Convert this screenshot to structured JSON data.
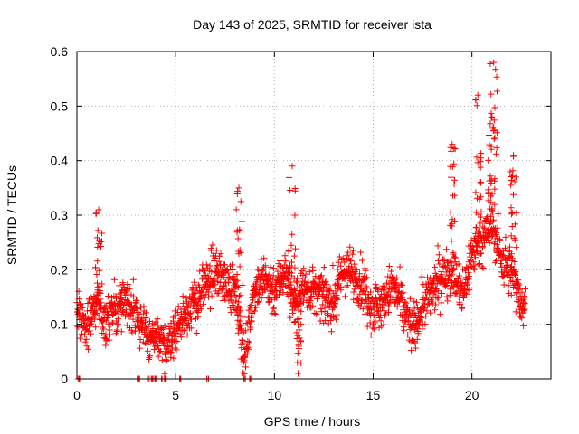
{
  "chart_data": {
    "type": "scatter",
    "title": "Day 143 of 2025, SRMTID for receiver ista",
    "xlabel": "GPS time / hours",
    "ylabel": "SRMTID / TECUs",
    "xlim": [
      0,
      24
    ],
    "ylim": [
      0,
      0.6
    ],
    "xticks": [
      0,
      5,
      10,
      15,
      20
    ],
    "yticks": [
      0,
      0.1,
      0.2,
      0.3,
      0.4,
      0.5,
      0.6
    ],
    "xtick_labels": [
      "0",
      "5",
      "10",
      "15",
      "20"
    ],
    "ytick_labels": [
      "0",
      "0.1",
      "0.2",
      "0.3",
      "0.4",
      "0.5",
      "0.6"
    ],
    "grid": true,
    "marker": "+",
    "color": "#ff0000",
    "series": [
      {
        "name": "SRMTID",
        "trend": {
          "x": [
            0.0,
            0.5,
            1.0,
            1.5,
            2.0,
            2.5,
            3.0,
            3.5,
            4.0,
            4.5,
            5.0,
            5.5,
            6.0,
            6.5,
            7.0,
            7.5,
            8.0,
            8.5,
            9.0,
            9.5,
            10.0,
            10.5,
            11.0,
            11.5,
            12.0,
            12.5,
            13.0,
            13.5,
            14.0,
            14.5,
            15.0,
            15.5,
            16.0,
            16.5,
            17.0,
            17.5,
            18.0,
            18.5,
            19.0,
            19.5,
            20.0,
            20.5,
            21.0,
            21.5,
            22.0,
            22.5
          ],
          "y": [
            0.12,
            0.1,
            0.14,
            0.11,
            0.13,
            0.15,
            0.12,
            0.08,
            0.07,
            0.06,
            0.09,
            0.12,
            0.14,
            0.17,
            0.2,
            0.18,
            0.16,
            0.04,
            0.17,
            0.18,
            0.16,
            0.2,
            0.14,
            0.17,
            0.16,
            0.15,
            0.14,
            0.2,
            0.19,
            0.17,
            0.13,
            0.14,
            0.17,
            0.13,
            0.09,
            0.13,
            0.16,
            0.19,
            0.2,
            0.15,
            0.23,
            0.26,
            0.28,
            0.22,
            0.2,
            0.14
          ]
        },
        "excursions": [
          {
            "x": 1.1,
            "y": 0.31
          },
          {
            "x": 8.2,
            "y": 0.35
          },
          {
            "x": 10.9,
            "y": 0.39
          },
          {
            "x": 11.2,
            "y": 0.01
          },
          {
            "x": 19.0,
            "y": 0.43
          },
          {
            "x": 20.3,
            "y": 0.52
          },
          {
            "x": 21.1,
            "y": 0.58
          },
          {
            "x": 21.0,
            "y": 0.48
          },
          {
            "x": 22.1,
            "y": 0.41
          }
        ],
        "zero_values_x": [
          0.1,
          3.1,
          3.6,
          3.8,
          4.0,
          4.3,
          4.5,
          5.2,
          6.6,
          8.5,
          8.8
        ]
      }
    ]
  }
}
